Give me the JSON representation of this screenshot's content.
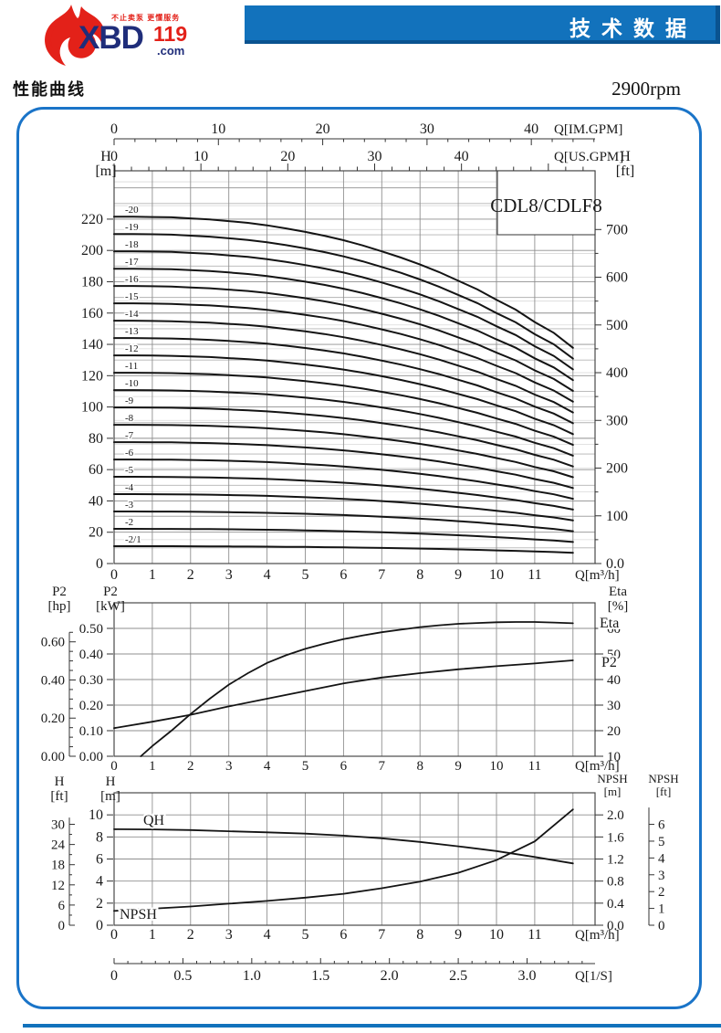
{
  "header": {
    "banner_title": "技术数据",
    "logo": {
      "tagline": "不止卖泵 更懂服务",
      "brand": "XBD",
      "brand_num": "119",
      "brand_suffix": ".com"
    }
  },
  "subheader": {
    "section_title": "性能曲线",
    "rpm": "2900rpm"
  },
  "colors": {
    "banner_blue": "#1272bc",
    "banner_blue_dark": "#0a5390",
    "panel_border_blue": "#1a74c8",
    "logo_navy": "#1f2d7a",
    "logo_red": "#e32119",
    "curve_black": "#141414"
  },
  "chart_data": [
    {
      "type": "line",
      "title": "CDL8/CDLF8",
      "x_bottom": {
        "label": "Q[m³/h]",
        "ticks": [
          0,
          1,
          2,
          3,
          4,
          5,
          6,
          7,
          8,
          9,
          10,
          11
        ],
        "range": [
          0,
          12.58
        ]
      },
      "x_top_imperial": {
        "label": "Q[IM.GPM]",
        "ticks": [
          0,
          10,
          20,
          30,
          40
        ],
        "minor_step": 2,
        "gpm_per_m3h": 3.666
      },
      "x_top_us": {
        "label": "Q[US.GPM]",
        "ticks": [
          0,
          10,
          20,
          30,
          40
        ],
        "minor_step": 2,
        "gpm_per_m3h": 4.403
      },
      "y_left": {
        "label": "H",
        "unit": "[m]",
        "ticks": [
          0,
          20,
          40,
          60,
          80,
          100,
          120,
          140,
          160,
          180,
          200,
          220
        ],
        "range": [
          0,
          251
        ]
      },
      "y_right": {
        "label": "H",
        "unit": "[ft]",
        "ticks": [
          "0.0",
          "100",
          "200",
          "300",
          "400",
          "500",
          "600",
          "700"
        ],
        "minor_step_ft": 50
      },
      "head_per_stage_m": 11.08,
      "rel_head_curve": {
        "q": [
          0,
          0.5,
          1,
          1.5,
          2,
          2.5,
          3,
          3.5,
          4,
          4.5,
          5,
          5.5,
          6,
          6.5,
          7,
          7.5,
          8,
          8.5,
          9,
          9.5,
          10,
          10.5,
          11,
          11.5,
          12
        ],
        "f": [
          1,
          1,
          0.999,
          0.998,
          0.995,
          0.992,
          0.987,
          0.982,
          0.975,
          0.966,
          0.956,
          0.945,
          0.932,
          0.917,
          0.9,
          0.882,
          0.862,
          0.84,
          0.815,
          0.79,
          0.76,
          0.732,
          0.696,
          0.665,
          0.622
        ]
      },
      "stages": [
        {
          "label": "-20",
          "impellers": 20
        },
        {
          "label": "-19",
          "impellers": 19
        },
        {
          "label": "-18",
          "impellers": 18
        },
        {
          "label": "-17",
          "impellers": 17
        },
        {
          "label": "-16",
          "impellers": 16
        },
        {
          "label": "-15",
          "impellers": 15
        },
        {
          "label": "-14",
          "impellers": 14
        },
        {
          "label": "-13",
          "impellers": 13
        },
        {
          "label": "-12",
          "impellers": 12
        },
        {
          "label": "-11",
          "impellers": 11
        },
        {
          "label": "-10",
          "impellers": 10
        },
        {
          "label": "-9",
          "impellers": 9
        },
        {
          "label": "-8",
          "impellers": 8
        },
        {
          "label": "-7",
          "impellers": 7
        },
        {
          "label": "-6",
          "impellers": 6
        },
        {
          "label": "-5",
          "impellers": 5
        },
        {
          "label": "-4",
          "impellers": 4
        },
        {
          "label": "-3",
          "impellers": 3
        },
        {
          "label": "-2",
          "impellers": 2
        },
        {
          "label": "-2/1",
          "impellers": 1
        }
      ]
    },
    {
      "type": "line",
      "x": {
        "label": "Q[m³/h]",
        "ticks": [
          0,
          1,
          2,
          3,
          4,
          5,
          6,
          7,
          8,
          9,
          10,
          11
        ],
        "range": [
          0,
          12.58
        ]
      },
      "y_left_inner": {
        "label": "P2",
        "unit": "[kW]",
        "ticks": [
          "0.00",
          "0.10",
          "0.20",
          "0.30",
          "0.40",
          "0.50"
        ],
        "range": [
          0,
          0.6
        ]
      },
      "y_left_outer": {
        "label": "P2",
        "unit": "[hp]",
        "ticks": [
          "0.00",
          "0.20",
          "0.40",
          "0.60"
        ],
        "minor_step": 0.05,
        "kw_per_hp": 0.7457
      },
      "y_right": {
        "label": "Eta",
        "unit": "[%]",
        "ticks": [
          10,
          20,
          30,
          40,
          50,
          60
        ]
      },
      "series": [
        {
          "name": "Eta",
          "axis": "right",
          "x": [
            0.7,
            1,
            1.5,
            2,
            2.5,
            3,
            3.5,
            4,
            4.5,
            5,
            5.5,
            6,
            6.5,
            7,
            7.5,
            8,
            8.5,
            9,
            9.5,
            10,
            10.5,
            11,
            11.5,
            12
          ],
          "values": [
            10,
            14,
            20,
            26.5,
            32.5,
            38,
            42.5,
            46.5,
            49.5,
            52,
            54,
            55.8,
            57.2,
            58.5,
            59.5,
            60.5,
            61.2,
            61.8,
            62.1,
            62.4,
            62.5,
            62.5,
            62.3,
            62
          ]
        },
        {
          "name": "P2",
          "axis": "left",
          "x": [
            0,
            1,
            2,
            3,
            4,
            5,
            6,
            7,
            8,
            9,
            10,
            11,
            12
          ],
          "values": [
            0.11,
            0.135,
            0.162,
            0.195,
            0.225,
            0.255,
            0.285,
            0.308,
            0.325,
            0.34,
            0.352,
            0.363,
            0.375
          ]
        }
      ]
    },
    {
      "type": "line",
      "x": {
        "label": "Q[m³/h]",
        "ticks": [
          0,
          1,
          2,
          3,
          4,
          5,
          6,
          7,
          8,
          9,
          10,
          11
        ],
        "range": [
          0,
          12.58
        ]
      },
      "x_ls": {
        "label": "Q[1/S]",
        "ticks": [
          "0",
          "0.5",
          "1.0",
          "1.5",
          "2.0",
          "2.5",
          "3.0"
        ],
        "minor_step": 0.1,
        "m3h_per_ls": 3.6
      },
      "y_left_inner": {
        "label": "H",
        "unit": "[m]",
        "ticks": [
          0,
          2,
          4,
          6,
          8,
          10
        ],
        "range": [
          0,
          12
        ]
      },
      "y_left_outer": {
        "label": "H",
        "unit": "[ft]",
        "ticks": [
          0,
          6,
          12,
          18,
          24,
          30
        ],
        "minor_step": 3
      },
      "y_right_inner": {
        "label": "NPSH",
        "unit": "[m]",
        "ticks": [
          "0.0",
          "0.4",
          "0.8",
          "1.2",
          "1.6",
          "2.0"
        ]
      },
      "y_right_outer": {
        "label": "NPSH",
        "unit": "[ft]",
        "ticks": [
          0,
          1,
          2,
          3,
          4,
          5,
          6
        ]
      },
      "series": [
        {
          "name": "QH",
          "axis": "left",
          "x": [
            0,
            1,
            2,
            3,
            4,
            5,
            6,
            7,
            8,
            9,
            10,
            11,
            12
          ],
          "values": [
            8.7,
            8.68,
            8.62,
            8.52,
            8.42,
            8.3,
            8.12,
            7.88,
            7.55,
            7.15,
            6.72,
            6.18,
            5.6
          ]
        },
        {
          "name": "NPSH",
          "axis": "right",
          "x": [
            0,
            1,
            2,
            3,
            4,
            5,
            6,
            7,
            8,
            9,
            10,
            11,
            12
          ],
          "values": [
            0.26,
            0.3,
            0.34,
            0.39,
            0.44,
            0.5,
            0.57,
            0.67,
            0.79,
            0.95,
            1.18,
            1.52,
            2.1
          ]
        }
      ]
    }
  ]
}
